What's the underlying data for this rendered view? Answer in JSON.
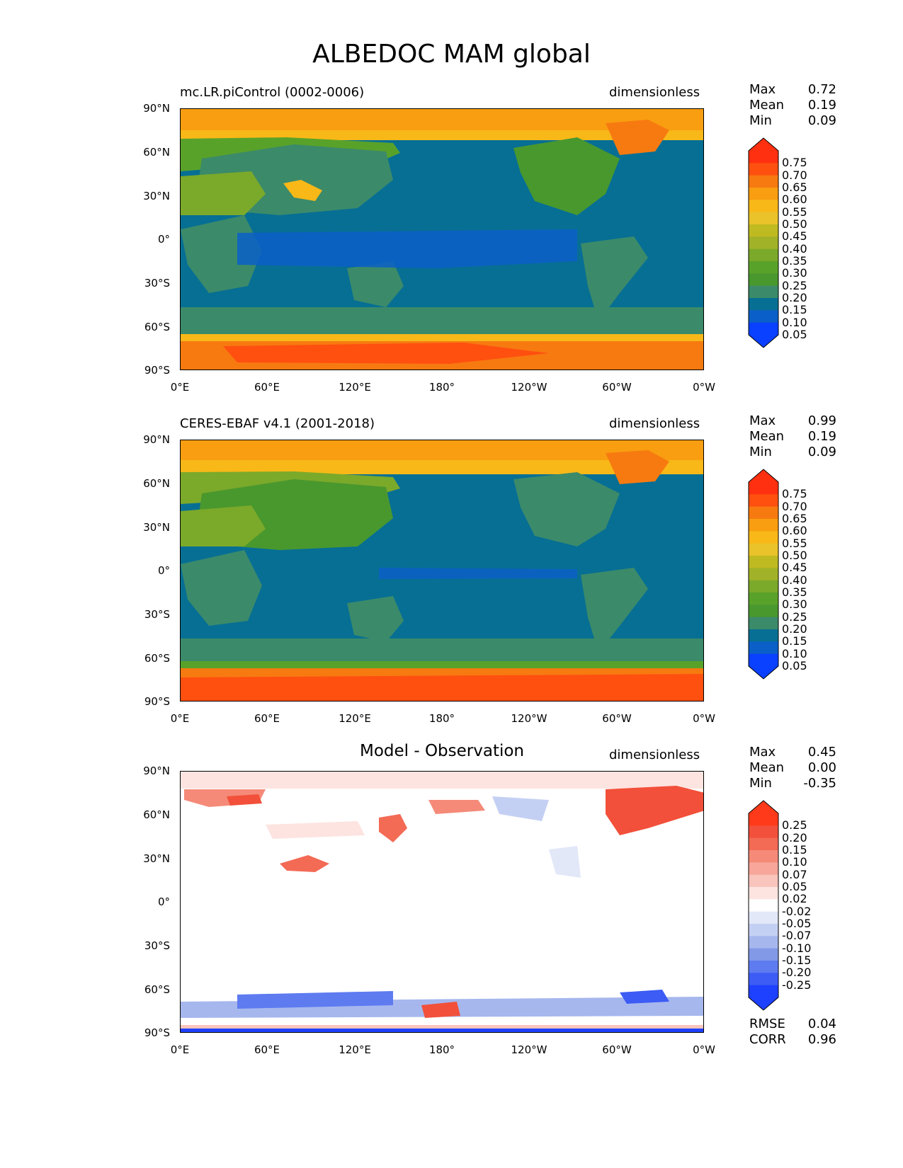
{
  "figure": {
    "title": "ALBEDOC MAM global"
  },
  "axes": {
    "lat_labels": [
      "90°N",
      "60°N",
      "30°N",
      "0°",
      "30°S",
      "60°S",
      "90°S"
    ],
    "lon_labels": [
      "0°E",
      "60°E",
      "120°E",
      "180°",
      "120°W",
      "60°W",
      "0°W"
    ]
  },
  "stat_names": {
    "max": "Max",
    "mean": "Mean",
    "min": "Min",
    "rmse": "RMSE",
    "corr": "CORR"
  },
  "panels": [
    {
      "title_left": "mc.LR.piControl (0002-0006)",
      "units": "dimensionless",
      "stats": {
        "max": "0.72",
        "mean": "0.19",
        "min": "0.09"
      },
      "colorbar": {
        "labels": [
          "0.75",
          "0.70",
          "0.65",
          "0.60",
          "0.55",
          "0.50",
          "0.45",
          "0.40",
          "0.35",
          "0.30",
          "0.25",
          "0.20",
          "0.15",
          "0.10",
          "0.05"
        ],
        "colors": [
          "#ff3010",
          "#ff5010",
          "#f77a10",
          "#f89e10",
          "#f8b818",
          "#eac32a",
          "#bfba20",
          "#a2b228",
          "#7ba92a",
          "#59a22a",
          "#49982e",
          "#3b8a6a",
          "#076f94",
          "#0b5fc8",
          "#0a40ff"
        ]
      }
    },
    {
      "title_left": "CERES-EBAF v4.1 (2001-2018)",
      "units": "dimensionless",
      "stats": {
        "max": "0.99",
        "mean": "0.19",
        "min": "0.09"
      },
      "colorbar": {
        "labels": [
          "0.75",
          "0.70",
          "0.65",
          "0.60",
          "0.55",
          "0.50",
          "0.45",
          "0.40",
          "0.35",
          "0.30",
          "0.25",
          "0.20",
          "0.15",
          "0.10",
          "0.05"
        ],
        "colors": [
          "#ff3010",
          "#ff5010",
          "#f77a10",
          "#f89e10",
          "#f8b818",
          "#eac32a",
          "#bfba20",
          "#a2b228",
          "#7ba92a",
          "#59a22a",
          "#49982e",
          "#3b8a6a",
          "#076f94",
          "#0b5fc8",
          "#0a40ff"
        ]
      }
    },
    {
      "title_center": "Model - Observation",
      "units": "dimensionless",
      "stats": {
        "max": "0.45",
        "mean": "0.00",
        "min": "-0.35",
        "rmse": "0.04",
        "corr": "0.96"
      },
      "colorbar": {
        "labels": [
          "0.25",
          "0.20",
          "0.15",
          "0.10",
          "0.07",
          "0.05",
          "0.02",
          "-0.02",
          "-0.05",
          "-0.07",
          "-0.10",
          "-0.15",
          "-0.20",
          "-0.25"
        ],
        "colors": [
          "#ff3a1a",
          "#f2503a",
          "#f36a55",
          "#f58a78",
          "#f7a699",
          "#f9c4bc",
          "#fde4e0",
          "#ffffff",
          "#e2e8f8",
          "#c4d0f3",
          "#a6b7ee",
          "#8199e7",
          "#5e7bf0",
          "#3c5cf5",
          "#1e40ff"
        ]
      }
    }
  ],
  "chart_data": {
    "type": "heatmap",
    "title": "ALBEDOC MAM global",
    "xlim": [
      0,
      360
    ],
    "ylim": [
      -90,
      90
    ],
    "xticks": [
      "0°E",
      "60°E",
      "120°E",
      "180°",
      "120°W",
      "60°W",
      "0°W"
    ],
    "yticks": [
      "90°N",
      "60°N",
      "30°N",
      "0°",
      "30°S",
      "60°S",
      "90°S"
    ],
    "maps": [
      {
        "title": "mc.LR.piControl (0002-0006)",
        "units": "dimensionless",
        "max": 0.72,
        "mean": 0.19,
        "min": 0.09,
        "levels": [
          0.05,
          0.1,
          0.15,
          0.2,
          0.25,
          0.3,
          0.35,
          0.4,
          0.45,
          0.5,
          0.55,
          0.6,
          0.65,
          0.7,
          0.75
        ]
      },
      {
        "title": "CERES-EBAF v4.1 (2001-2018)",
        "units": "dimensionless",
        "max": 0.99,
        "mean": 0.19,
        "min": 0.09,
        "levels": [
          0.05,
          0.1,
          0.15,
          0.2,
          0.25,
          0.3,
          0.35,
          0.4,
          0.45,
          0.5,
          0.55,
          0.6,
          0.65,
          0.7,
          0.75
        ]
      },
      {
        "title": "Model - Observation",
        "units": "dimensionless",
        "max": 0.45,
        "mean": 0.0,
        "min": -0.35,
        "rmse": 0.04,
        "corr": 0.96,
        "levels": [
          -0.25,
          -0.2,
          -0.15,
          -0.1,
          -0.07,
          -0.05,
          -0.02,
          0.02,
          0.05,
          0.07,
          0.1,
          0.15,
          0.2,
          0.25
        ]
      }
    ]
  }
}
